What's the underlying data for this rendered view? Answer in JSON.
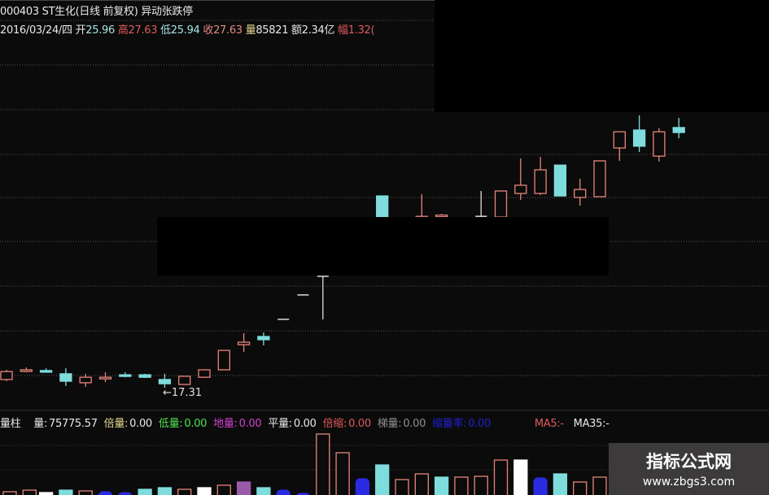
{
  "header": {
    "title": "000403 ST生化(日线 前复权) 异动张跌停",
    "date": "2016/03/24/四",
    "open_label": "开",
    "open": "25.96",
    "high_label": "高",
    "high": "27.63",
    "low_label": "低",
    "low": "25.94",
    "close_label": "收",
    "close": "27.63",
    "vol_label": "量",
    "vol": "85821",
    "amount_label": "额",
    "amount": "2.34亿",
    "range_label": "幅",
    "range": "1.32("
  },
  "price_annotation": "←17.31",
  "volume_header": {
    "name": "量柱",
    "items": [
      {
        "label": "量:",
        "value": "75775.57",
        "color": "#e8e8e8"
      },
      {
        "label": "倍量:",
        "value": "0.00",
        "color": "#e8d890"
      },
      {
        "label": "低量:",
        "value": "0.00",
        "color": "#50e050"
      },
      {
        "label": "地量:",
        "value": "0.00",
        "color": "#d040d0"
      },
      {
        "label": "平量:",
        "value": "0.00",
        "color": "#e8e8e8"
      },
      {
        "label": "倍缩:",
        "value": "0.00",
        "color": "#e05a5a"
      },
      {
        "label": "梯量:",
        "value": "0.00",
        "color": "#909090"
      },
      {
        "label": "缩量率:",
        "value": "0.00",
        "color": "#2020d0"
      }
    ],
    "ma5": "MA5:-",
    "ma35": "MA35:-",
    "ma5_color": "#e05a5a",
    "ma35_color": "#e8e8e8"
  },
  "watermark": {
    "title": "指标公式网",
    "url": "www.zbgs3.com"
  },
  "colors": {
    "up": "#e8857a",
    "down": "#7fdcdc",
    "flat": "#dddddd",
    "shrink": "#2a2ae0",
    "purple": "#9a5aa8",
    "background": "#0b0b0b",
    "grid": "#555555"
  },
  "chart_data": {
    "type": "candlestick",
    "title": "",
    "grid": true,
    "price_low_marker": 17.31,
    "candles": [
      {
        "o": 17.64,
        "h": 18.03,
        "l": 17.57,
        "c": 17.96
      },
      {
        "o": 18.0,
        "h": 18.12,
        "l": 17.93,
        "c": 18.03
      },
      {
        "o": 18.0,
        "h": 18.09,
        "l": 17.93,
        "c": 17.96
      },
      {
        "o": 17.87,
        "h": 18.09,
        "l": 17.38,
        "c": 17.57
      },
      {
        "o": 17.51,
        "h": 17.87,
        "l": 17.34,
        "c": 17.73
      },
      {
        "o": 17.67,
        "h": 17.93,
        "l": 17.54,
        "c": 17.73
      },
      {
        "o": 17.83,
        "h": 17.93,
        "l": 17.73,
        "c": 17.77
      },
      {
        "o": 17.83,
        "h": 17.87,
        "l": 17.7,
        "c": 17.73
      },
      {
        "o": 17.64,
        "h": 17.87,
        "l": 17.31,
        "c": 17.47
      },
      {
        "o": 17.44,
        "h": 17.77,
        "l": 17.44,
        "c": 17.77
      },
      {
        "o": 17.73,
        "h": 18.03,
        "l": 17.73,
        "c": 18.03
      },
      {
        "o": 18.03,
        "h": 18.81,
        "l": 18.03,
        "c": 18.81
      },
      {
        "o": 19.04,
        "h": 19.5,
        "l": 18.75,
        "c": 19.14
      },
      {
        "o": 19.37,
        "h": 19.53,
        "l": 19.01,
        "c": 19.24
      },
      {
        "o": 20.06,
        "h": 20.06,
        "l": 20.06,
        "c": 20.06,
        "flat": true
      },
      {
        "o": 21.04,
        "h": 21.04,
        "l": 21.04,
        "c": 21.04,
        "flat": true
      },
      {
        "o": 21.79,
        "h": 21.79,
        "l": 20.06,
        "c": 21.79,
        "flat": true
      },
      null,
      null,
      {
        "o": 25.02,
        "h": 25.02,
        "l": 24.0,
        "c": 24.17
      },
      null,
      {
        "o": 24.17,
        "h": 25.09,
        "l": 24.1,
        "c": 24.2
      },
      {
        "o": 24.2,
        "h": 24.3,
        "l": 24.1,
        "c": 24.25
      },
      null,
      {
        "o": 24.2,
        "h": 25.22,
        "l": 24.17,
        "c": 24.2,
        "flat": true
      },
      {
        "o": 24.17,
        "h": 25.22,
        "l": 24.17,
        "c": 25.22
      },
      {
        "o": 25.12,
        "h": 26.53,
        "l": 24.86,
        "c": 25.45
      },
      {
        "o": 25.12,
        "h": 26.59,
        "l": 25.06,
        "c": 26.07
      },
      {
        "o": 26.26,
        "h": 26.26,
        "l": 25.02,
        "c": 25.02
      },
      {
        "o": 24.96,
        "h": 25.71,
        "l": 24.63,
        "c": 25.28
      },
      {
        "o": 24.99,
        "h": 26.43,
        "l": 24.99,
        "c": 26.43
      },
      {
        "o": 26.95,
        "h": 27.6,
        "l": 26.43,
        "c": 27.6
      },
      {
        "o": 27.67,
        "h": 28.26,
        "l": 26.79,
        "c": 27.02
      },
      {
        "o": 26.62,
        "h": 27.75,
        "l": 26.4,
        "c": 27.6
      },
      {
        "o": 27.77,
        "h": 28.16,
        "l": 27.34,
        "c": 27.57
      }
    ],
    "volume": [
      {
        "v": 20000,
        "t": "up"
      },
      {
        "v": 22000,
        "t": "up"
      },
      {
        "v": 19000,
        "t": "flat"
      },
      {
        "v": 22000,
        "t": "down"
      },
      {
        "v": 21000,
        "t": "up"
      },
      {
        "v": 20000,
        "t": "shrink"
      },
      {
        "v": 19000,
        "t": "shrink"
      },
      {
        "v": 23000,
        "t": "down"
      },
      {
        "v": 25000,
        "t": "down"
      },
      {
        "v": 23000,
        "t": "up"
      },
      {
        "v": 25000,
        "t": "flat"
      },
      {
        "v": 28000,
        "t": "up"
      },
      {
        "v": 32000,
        "t": "purple"
      },
      {
        "v": 25000,
        "t": "down"
      },
      {
        "v": 22000,
        "t": "shrink"
      },
      {
        "v": 18000,
        "t": "shrink"
      },
      {
        "v": 91000,
        "t": "up"
      },
      {
        "v": 68000,
        "t": "up"
      },
      {
        "v": 36000,
        "t": "shrink"
      },
      {
        "v": 53000,
        "t": "down"
      },
      {
        "v": 35000,
        "t": "up"
      },
      {
        "v": 42000,
        "t": "up"
      },
      {
        "v": 38000,
        "t": "down"
      },
      {
        "v": 38000,
        "t": "up"
      },
      {
        "v": 39000,
        "t": "up"
      },
      {
        "v": 59000,
        "t": "up"
      },
      {
        "v": 59000,
        "t": "flat"
      },
      {
        "v": 37000,
        "t": "shrink"
      },
      {
        "v": 42000,
        "t": "down"
      },
      {
        "v": 32000,
        "t": "up"
      },
      {
        "v": 38000,
        "t": "up"
      }
    ]
  }
}
